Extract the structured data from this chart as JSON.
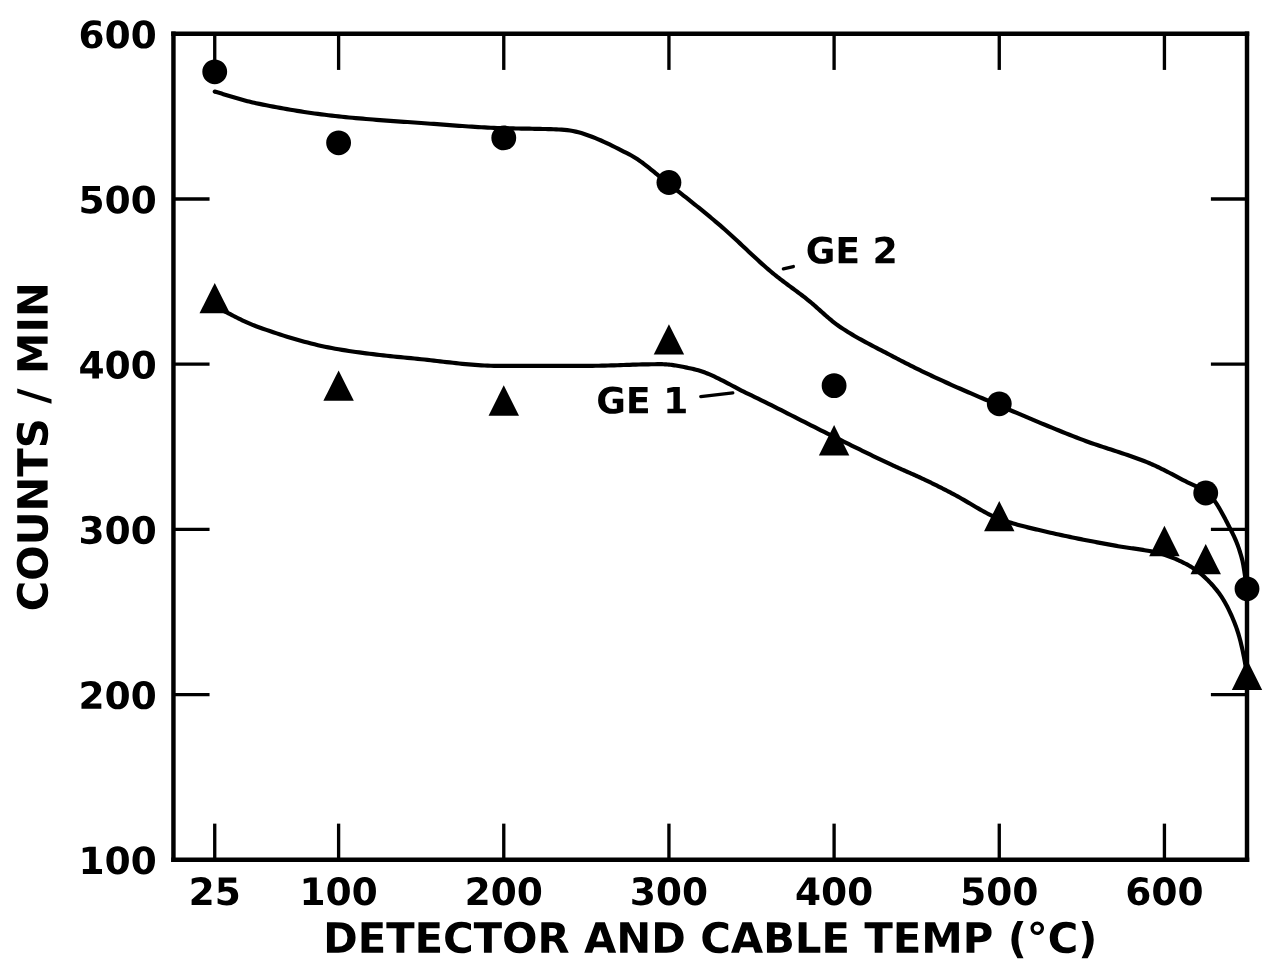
{
  "chart_data": {
    "type": "scatter",
    "xlabel": "DETECTOR AND CABLE TEMP (°C)",
    "ylabel": "COUNTS / MIN",
    "xlim": [
      0,
      650
    ],
    "ylim": [
      100,
      600
    ],
    "xticks": [
      25,
      100,
      200,
      300,
      400,
      500,
      600
    ],
    "yticks": [
      100,
      200,
      300,
      400,
      500,
      600
    ],
    "grid": false,
    "series": [
      {
        "marker": "circle",
        "color": "#000000",
        "x": [
          25,
          100,
          200,
          300,
          400,
          500,
          625,
          650
        ],
        "values": [
          577,
          534,
          537,
          510,
          387,
          376,
          322,
          264
        ]
      },
      {
        "marker": "triangle",
        "color": "#000000",
        "x": [
          25,
          100,
          200,
          300,
          400,
          500,
          600,
          625,
          650
        ],
        "values": [
          440,
          387,
          378,
          415,
          354,
          308,
          293,
          282,
          212
        ]
      },
      {
        "type": "line",
        "marker": "none",
        "line_style": "solid",
        "color": "#000000",
        "x": [
          25,
          50,
          100,
          150,
          196,
          235,
          276,
          300,
          331,
          363,
          384,
          403,
          435,
          459,
          500,
          551,
          591,
          611,
          627,
          639,
          647,
          650
        ],
        "values": [
          565,
          558,
          550,
          546,
          543,
          542,
          527,
          509,
          484,
          455,
          439,
          423,
          405,
          393,
          375,
          354,
          340,
          330,
          321,
          302,
          282,
          264
        ]
      },
      {
        "type": "line",
        "marker": "none",
        "line_style": "solid",
        "color": "#000000",
        "x": [
          25,
          50,
          100,
          150,
          196,
          250,
          295,
          315,
          348,
          396,
          435,
          455,
          471,
          501,
          531,
          571,
          595,
          615,
          631,
          643,
          649,
          650
        ],
        "values": [
          435,
          423,
          409,
          403,
          399,
          399,
          400,
          397,
          382,
          358,
          339,
          330,
          322,
          306,
          298,
          290,
          286,
          278,
          264,
          242,
          218,
          210
        ]
      }
    ],
    "annotations": [
      {
        "text": "GE 2",
        "x": 366,
        "y": 457
      },
      {
        "text": "GE 1",
        "x": 342,
        "y": 383
      }
    ]
  }
}
